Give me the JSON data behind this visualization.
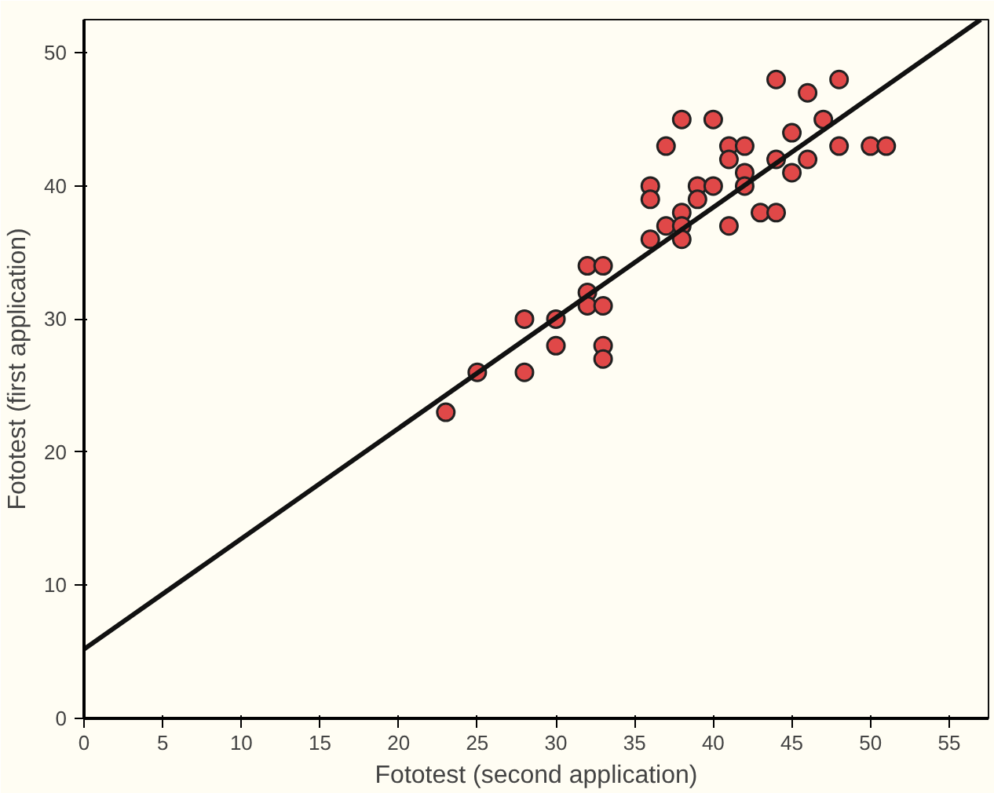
{
  "chart_data": {
    "type": "scatter",
    "xlabel": "Fototest (second application)",
    "ylabel": "Fototest (first application)",
    "xlim": [
      0,
      57.5
    ],
    "ylim": [
      0,
      52.5
    ],
    "xticks": [
      0,
      5,
      10,
      15,
      20,
      25,
      30,
      35,
      40,
      45,
      50,
      55
    ],
    "yticks": [
      0,
      10,
      20,
      30,
      40,
      50
    ],
    "grid": false,
    "series": [
      {
        "marker": "circle",
        "color": "#e04848",
        "x": [
          23,
          25,
          28,
          28,
          30,
          30,
          32,
          33,
          32,
          32,
          33,
          33,
          33,
          36,
          36,
          36,
          37,
          37,
          38,
          38,
          38,
          38,
          39,
          39,
          40,
          40,
          41,
          41,
          41,
          42,
          42,
          42,
          43,
          44,
          44,
          44,
          45,
          45,
          46,
          46,
          47,
          48,
          48,
          50,
          51
        ],
        "values": [
          23,
          26,
          30,
          26,
          30,
          28,
          34,
          34,
          32,
          31,
          31,
          28,
          27,
          40,
          39,
          36,
          43,
          37,
          45,
          38,
          37,
          36,
          40,
          39,
          45,
          40,
          43,
          42,
          37,
          43,
          41,
          40,
          38,
          38,
          48,
          42,
          44,
          41,
          47,
          42,
          45,
          48,
          43,
          43,
          43
        ]
      },
      {
        "type": "line",
        "marker": "none",
        "color": "#111111",
        "x": [
          0,
          57
        ],
        "values": [
          5.2,
          52.5
        ]
      }
    ]
  }
}
